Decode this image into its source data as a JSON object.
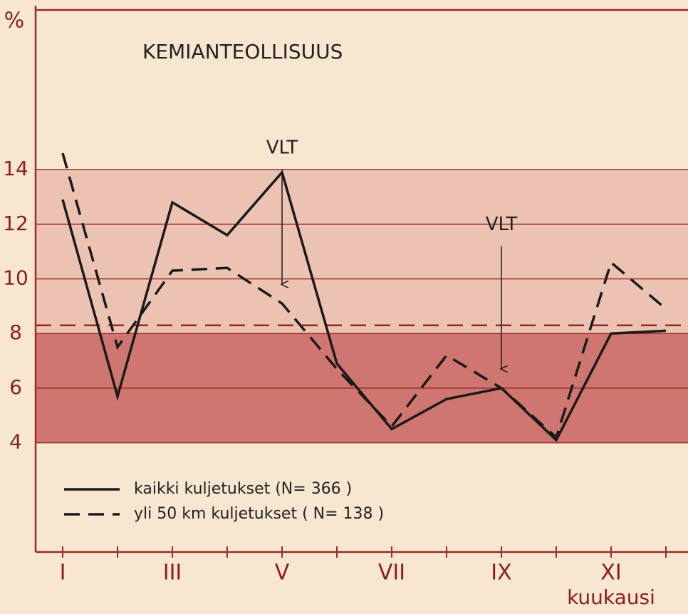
{
  "chart_data": {
    "type": "line",
    "title": "KEMIANTEOLLISUUS",
    "ylabel": "%",
    "xlabel": "kuukausi",
    "categories": [
      "I",
      null,
      "III",
      null,
      "V",
      null,
      "VII",
      null,
      "IX",
      null,
      "XI",
      null
    ],
    "series": [
      {
        "name": "kaikki kuljetukset (N= 366 )",
        "color": "#1a1a1a",
        "style": "solid",
        "values": [
          12.9,
          5.7,
          12.8,
          11.6,
          13.9,
          6.9,
          4.5,
          5.6,
          6.0,
          4.1,
          8.0,
          8.1
        ]
      },
      {
        "name": "yli 50 km kuljetukset ( N= 138 )",
        "color": "#1a1a1a",
        "style": "dashed",
        "values": [
          14.6,
          7.5,
          10.3,
          10.4,
          9.1,
          6.7,
          4.6,
          7.2,
          6.0,
          4.2,
          10.6,
          8.9
        ]
      }
    ],
    "ylim": [
      0,
      20
    ],
    "yticks": [
      4,
      6,
      8,
      10,
      12,
      14
    ],
    "grid": true,
    "bands": [
      {
        "from": 4,
        "to": 8,
        "color": "#cf7670"
      },
      {
        "from": 8,
        "to": 14,
        "color": "#ecc2b3"
      }
    ],
    "reference_line": {
      "value": 8.3,
      "color": "#8b2a2a"
    },
    "annotations": [
      {
        "text": "VLT",
        "category": "V",
        "from": 14,
        "to": 9.8
      },
      {
        "text": "VLT",
        "category": "IX",
        "from": 11.2,
        "to": 6.7
      }
    ],
    "legend": "lower left"
  }
}
